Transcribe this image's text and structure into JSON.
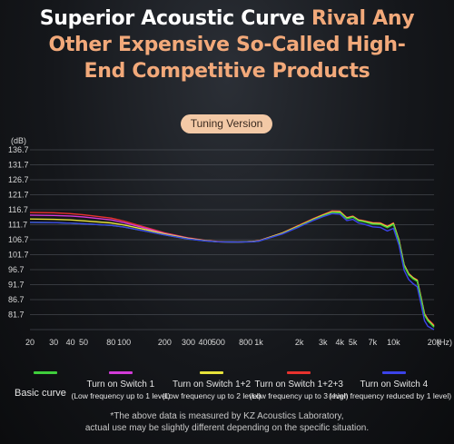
{
  "headline": {
    "line1_white": "Superior Acoustic Curve ",
    "line1_peach": "Rival Any",
    "line2": "Other Expensive So-Called High-",
    "line3": "End Competitive Products"
  },
  "badge": "Tuning Version",
  "chart_data": {
    "type": "line",
    "ylabel": "(dB)",
    "xlabel_unit": "(Hz)",
    "x_scale": "log",
    "xlim": [
      20,
      20000
    ],
    "ylim": [
      76.7,
      136.7
    ],
    "y_ticks": [
      "136.7",
      "131.7",
      "126.7",
      "121.7",
      "116.7",
      "111.7",
      "106.7",
      "101.7",
      "96.7",
      "91.7",
      "86.7",
      "81.7"
    ],
    "x_ticks": [
      "20",
      "30",
      "40",
      "50",
      "80",
      "100",
      "200",
      "300",
      "400",
      "500",
      "800",
      "1k",
      "2k",
      "3k",
      "4k",
      "5k",
      "7k",
      "10k",
      "20k"
    ],
    "x_tick_values": [
      20,
      30,
      40,
      50,
      80,
      100,
      200,
      300,
      400,
      500,
      800,
      1000,
      2000,
      3000,
      4000,
      5000,
      7000,
      10000,
      20000
    ],
    "x": [
      20,
      30,
      40,
      50,
      80,
      100,
      150,
      200,
      300,
      400,
      500,
      700,
      900,
      1000,
      1500,
      2000,
      2500,
      3000,
      3500,
      4000,
      4500,
      5000,
      5500,
      6000,
      7000,
      8000,
      9000,
      10000,
      11000,
      12000,
      13000,
      14000,
      15000,
      16000,
      17000,
      18000,
      20000
    ],
    "series": [
      {
        "name": "Turn on Switch 1+2+3",
        "color": "#e8322e",
        "values": [
          115.8,
          115.7,
          115.4,
          115.0,
          113.9,
          112.9,
          110.6,
          109.0,
          107.3,
          106.5,
          106.1,
          105.9,
          106.1,
          106.4,
          109.0,
          111.6,
          113.6,
          115.1,
          116.3,
          116.2,
          114.1,
          114.6,
          113.4,
          113.1,
          112.4,
          112.3,
          111.2,
          112.3,
          106.6,
          98.4,
          95.4,
          94.1,
          93.3,
          87.8,
          82.1,
          80.2,
          78.2
        ]
      },
      {
        "name": "Turn on Switch 1",
        "color": "#d23bd8",
        "values": [
          114.9,
          114.8,
          114.6,
          114.3,
          113.3,
          112.4,
          110.3,
          108.8,
          107.2,
          106.4,
          106.0,
          105.9,
          106.1,
          106.3,
          108.9,
          111.4,
          113.4,
          114.9,
          116.0,
          116.0,
          113.9,
          114.4,
          113.2,
          112.9,
          112.2,
          112.1,
          111.0,
          112.1,
          106.4,
          98.2,
          95.2,
          93.9,
          93.1,
          87.5,
          81.8,
          79.9,
          77.8
        ]
      },
      {
        "name": "Turn on Switch 1+2",
        "color": "#e6e23a",
        "values": [
          113.6,
          113.5,
          113.3,
          113.0,
          112.3,
          111.6,
          109.9,
          108.6,
          107.1,
          106.4,
          106.0,
          105.9,
          106.1,
          106.3,
          108.9,
          111.4,
          113.4,
          114.9,
          116.0,
          116.0,
          113.9,
          114.4,
          113.2,
          112.9,
          112.2,
          112.1,
          111.0,
          112.1,
          106.4,
          98.2,
          95.2,
          93.9,
          93.1,
          87.5,
          81.8,
          79.9,
          77.8
        ]
      },
      {
        "name": "Basic curve",
        "color": "#3fce3c",
        "values": [
          112.5,
          112.4,
          112.2,
          112.0,
          111.5,
          110.9,
          109.4,
          108.3,
          106.9,
          106.3,
          106.0,
          105.9,
          106.0,
          106.2,
          108.7,
          111.2,
          113.2,
          114.7,
          115.8,
          115.7,
          113.7,
          114.2,
          113.0,
          112.7,
          111.9,
          111.8,
          110.7,
          111.8,
          106.1,
          97.9,
          94.9,
          93.6,
          92.8,
          87.2,
          81.5,
          79.6,
          77.5
        ]
      },
      {
        "name": "Turn on Switch 4",
        "color": "#3b43e8",
        "values": [
          112.5,
          112.4,
          112.2,
          112.0,
          111.5,
          110.9,
          109.4,
          108.3,
          106.9,
          106.3,
          106.0,
          105.9,
          106.0,
          106.2,
          108.6,
          111.0,
          113.0,
          114.4,
          115.4,
          115.2,
          113.1,
          113.5,
          112.3,
          111.9,
          111.0,
          110.8,
          109.6,
          110.5,
          104.8,
          96.5,
          93.4,
          92.0,
          91.0,
          85.4,
          79.7,
          77.8,
          76.7
        ]
      }
    ]
  },
  "legend": [
    {
      "main": "",
      "sub": "",
      "color": "#3fce3c"
    },
    {
      "main": "Turn on Switch 1",
      "sub": "(Low frequency up to 1 level)",
      "color": "#d23bd8"
    },
    {
      "main": "Turn on Switch 1+2",
      "sub": "(Low frequency up to 2 level)",
      "color": "#e6e23a"
    },
    {
      "main": "Turn on Switch 1+2+3",
      "sub": "(Low frequency up to 3 level)",
      "color": "#e8322e"
    },
    {
      "main": "Turn on Switch 4",
      "sub": "( high frequency reduced by 1 level)",
      "color": "#3b43e8"
    }
  ],
  "basic_label": "Basic curve",
  "footnote": {
    "line1": "*The above data is measured by KZ Acoustics Laboratory,",
    "line2": "actual use may be slightly different depending on the specific situation."
  }
}
